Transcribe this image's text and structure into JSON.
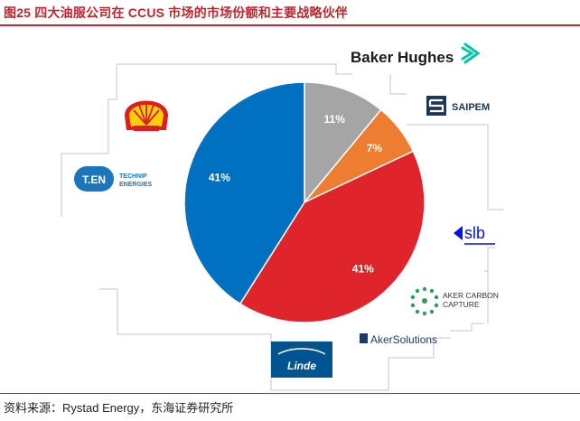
{
  "title": "图25  四大油服公司在 CCUS 市场的市场份额和主要战略伙伴",
  "source": "资料来源：Rystad Energy，东海证券研究所",
  "partners": {
    "baker_hughes": "Baker Hughes",
    "saipem": "SAIPEM",
    "slb": "slb",
    "aker_carbon_line1": "AKER CARBON",
    "aker_carbon_line2": "CAPTURE",
    "aker_solutions": "AkerSolutions",
    "linde": "Linde",
    "technip_mark": "T.EN",
    "technip_line1": "TECHNIP",
    "technip_line2": "ENERGIES"
  },
  "colors": {
    "title_red": "#c0262d",
    "connector": "#d9d9d9"
  },
  "chart_data": {
    "type": "pie",
    "start": "12 o'clock, clockwise",
    "slices": [
      {
        "value": 11,
        "label": "11%",
        "color": "#a5a5a5"
      },
      {
        "value": 7,
        "label": "7%",
        "color": "#ed7d31"
      },
      {
        "value": 41,
        "label": "41%",
        "color": "#e0242b"
      },
      {
        "value": 41,
        "label": "41%",
        "color": "#0070c0"
      }
    ]
  }
}
